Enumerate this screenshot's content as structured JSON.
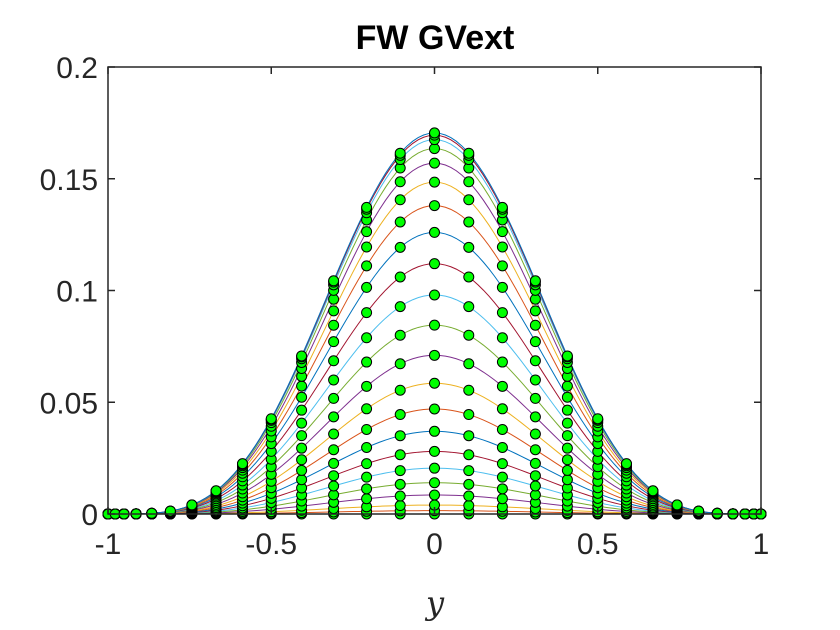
{
  "chart_data": {
    "type": "line",
    "title": "FW GVext",
    "xlabel": "y",
    "ylabel": "",
    "xlim": [
      -1,
      1
    ],
    "ylim": [
      0,
      0.2
    ],
    "xticks": [
      -1,
      -0.5,
      0,
      0.5,
      1
    ],
    "xtick_labels": [
      "-1",
      "-0.5",
      "0",
      "0.5",
      "1"
    ],
    "yticks": [
      0,
      0.05,
      0.1,
      0.15,
      0.2
    ],
    "ytick_labels": [
      "0",
      "0.05",
      "0.1",
      "0.15",
      "0.2"
    ],
    "grid": false,
    "legend": "none",
    "marker_fill": "#00ff00",
    "marker_edge": "#000000",
    "line_colors": [
      "#0072bd",
      "#d95319",
      "#edb120",
      "#7e2f8e",
      "#77ac30",
      "#4dbeee",
      "#a2142f"
    ],
    "x": [
      -1,
      -0.978,
      -0.951,
      -0.914,
      -0.866,
      -0.809,
      -0.743,
      -0.669,
      -0.588,
      -0.5,
      -0.407,
      -0.309,
      -0.208,
      -0.105,
      0,
      0.105,
      0.208,
      0.309,
      0.407,
      0.5,
      0.588,
      0.669,
      0.743,
      0.809,
      0.866,
      0.914,
      0.951,
      0.978,
      1
    ],
    "peaks": [
      0,
      0.0015,
      0.004,
      0.0085,
      0.014,
      0.0205,
      0.028,
      0.037,
      0.047,
      0.0585,
      0.071,
      0.0845,
      0.098,
      0.112,
      0.126,
      0.138,
      0.1485,
      0.157,
      0.1635,
      0.1675,
      0.1695,
      0.1705
    ],
    "series_formula": "y_value = peak * (cos(pi*y/2))^4"
  }
}
